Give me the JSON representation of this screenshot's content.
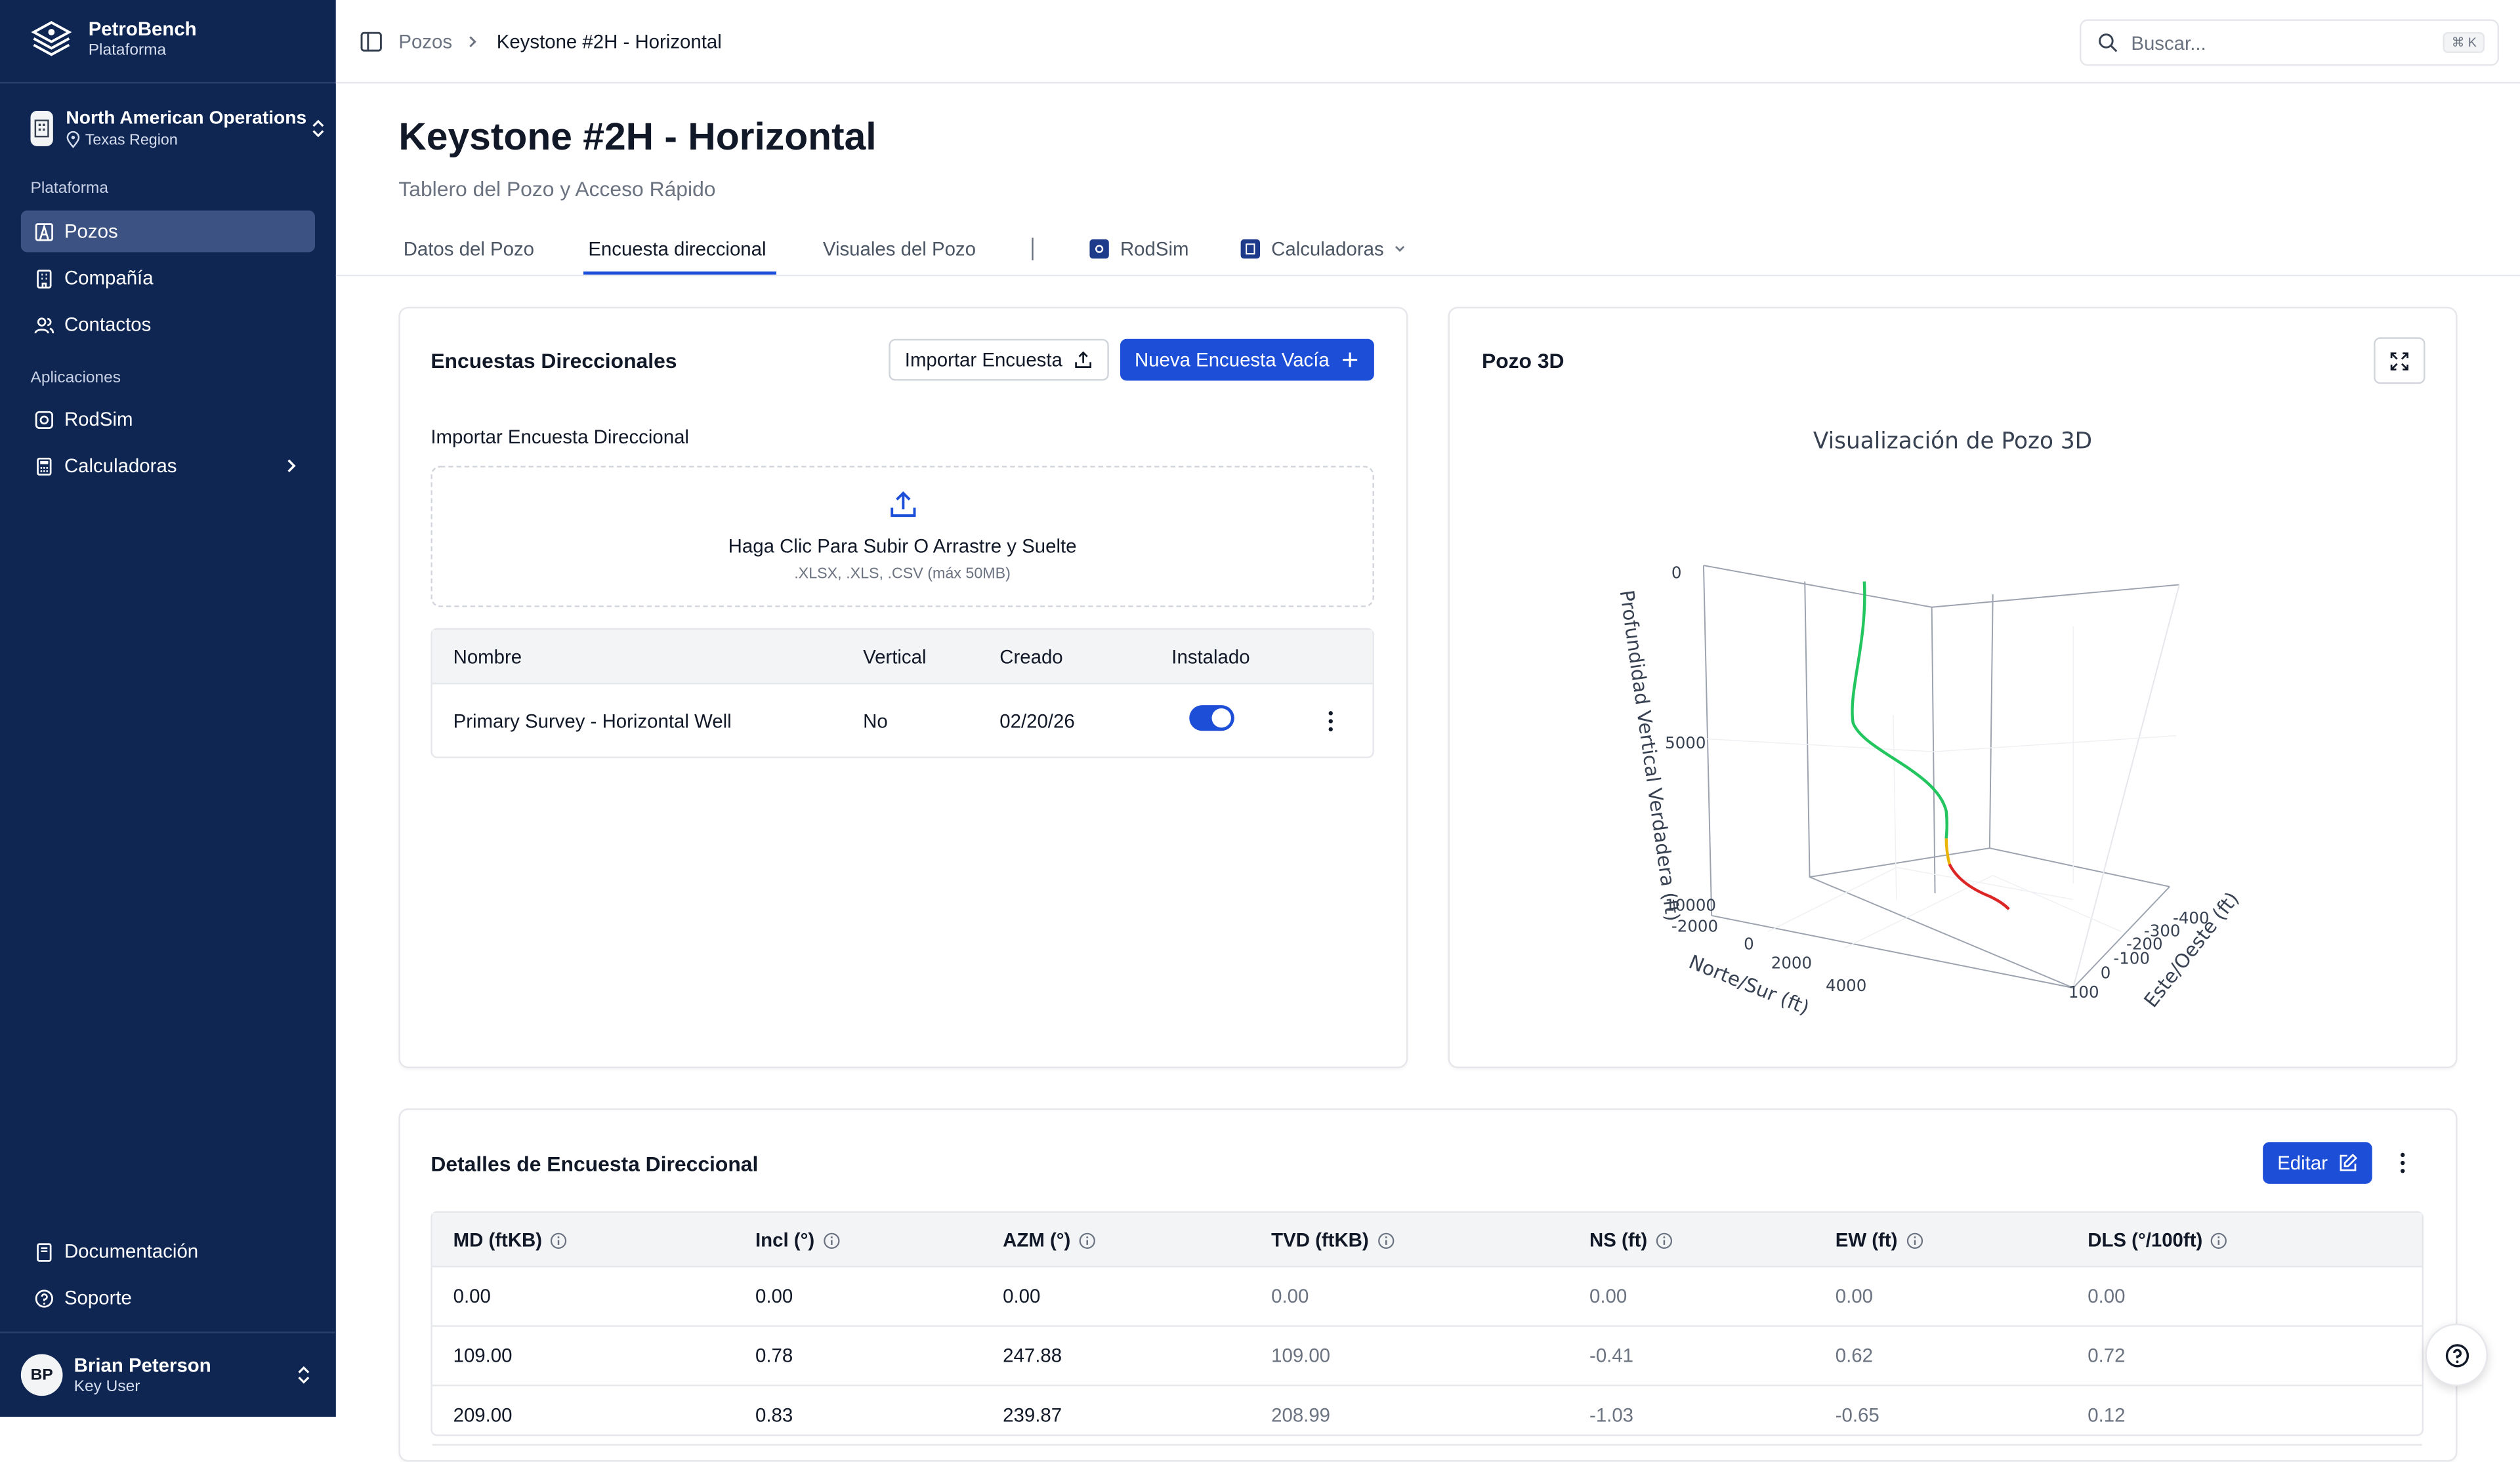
{
  "brand": {
    "name": "PetroBench",
    "subtitle": "Plataforma"
  },
  "org": {
    "name": "North American Operations",
    "region": "Texas Region"
  },
  "sidebar": {
    "section_platform": "Plataforma",
    "section_apps": "Aplicaciones",
    "items": [
      {
        "label": "Pozos",
        "icon": "oil-derrick-icon",
        "active": true
      },
      {
        "label": "Compañía",
        "icon": "building-icon"
      },
      {
        "label": "Contactos",
        "icon": "users-icon"
      }
    ],
    "apps": [
      {
        "label": "RodSim",
        "icon": "rodsim-icon"
      },
      {
        "label": "Calculadoras",
        "icon": "calculator-icon"
      }
    ],
    "footer": [
      {
        "label": "Documentación",
        "icon": "book-icon"
      },
      {
        "label": "Soporte",
        "icon": "help-circle-icon"
      }
    ],
    "user": {
      "initials": "BP",
      "name": "Brian Peterson",
      "role": "Key User"
    }
  },
  "topbar": {
    "breadcrumb": [
      "Pozos",
      "Keystone #2H - Horizontal"
    ],
    "search_placeholder": "Buscar...",
    "search_shortcut": "⌘ K"
  },
  "header": {
    "title": "Keystone #2H - Horizontal",
    "subtitle": "Tablero del Pozo y Acceso Rápido"
  },
  "tabs": [
    {
      "label": "Datos del Pozo"
    },
    {
      "label": "Encuesta direccional",
      "active": true
    },
    {
      "label": "Visuales del Pozo"
    },
    {
      "label": "RodSim",
      "icon": "rodsim-icon"
    },
    {
      "label": "Calculadoras",
      "icon": "calculator-icon"
    }
  ],
  "surveys_card": {
    "title": "Encuestas Direccionales",
    "import_button": "Importar Encuesta",
    "new_button": "Nueva Encuesta Vacía",
    "import_label": "Importar Encuesta Direccional",
    "dropzone_title": "Haga Clic Para Subir O Arrastre y Suelte",
    "dropzone_sub": ".XLSX, .XLS, .CSV (máx 50MB)",
    "columns": [
      "Nombre",
      "Vertical",
      "Creado",
      "Instalado"
    ],
    "rows": [
      {
        "name": "Primary Survey - Horizontal Well",
        "vertical": "No",
        "created": "02/20/26",
        "installed": true
      }
    ]
  },
  "well3d_card": {
    "title": "Pozo 3D",
    "viz_title": "Visualización de Pozo 3D",
    "z_label": "Profundidad Vertical Verdadera (ft)",
    "x_label": "Norte/Sur (ft)",
    "y_label": "Este/Oeste (ft)",
    "z_ticks": [
      "0",
      "5000",
      "10000"
    ],
    "x_ticks": [
      "-2000",
      "0",
      "2000",
      "4000"
    ],
    "y_ticks": [
      "-400",
      "-300",
      "-200",
      "-100",
      "0",
      "100"
    ],
    "colors": {
      "vertical": "#22c55e",
      "build": "#eab308",
      "lateral": "#dc2626"
    }
  },
  "details_card": {
    "title": "Detalles de Encuesta Direccional",
    "edit_button": "Editar",
    "columns": [
      "MD (ftKB)",
      "Incl (°)",
      "AZM (°)",
      "TVD (ftKB)",
      "NS (ft)",
      "EW (ft)",
      "DLS (°/100ft)"
    ],
    "rows": [
      [
        "0.00",
        "0.00",
        "0.00",
        "0.00",
        "0.00",
        "0.00",
        "0.00"
      ],
      [
        "109.00",
        "0.78",
        "247.88",
        "109.00",
        "-0.41",
        "0.62",
        "0.72"
      ],
      [
        "209.00",
        "0.83",
        "239.87",
        "208.99",
        "-1.03",
        "-0.65",
        "0.12"
      ]
    ]
  },
  "theme": {
    "sidebar_bg": "#0f2653",
    "accent": "#1d4ed8"
  }
}
